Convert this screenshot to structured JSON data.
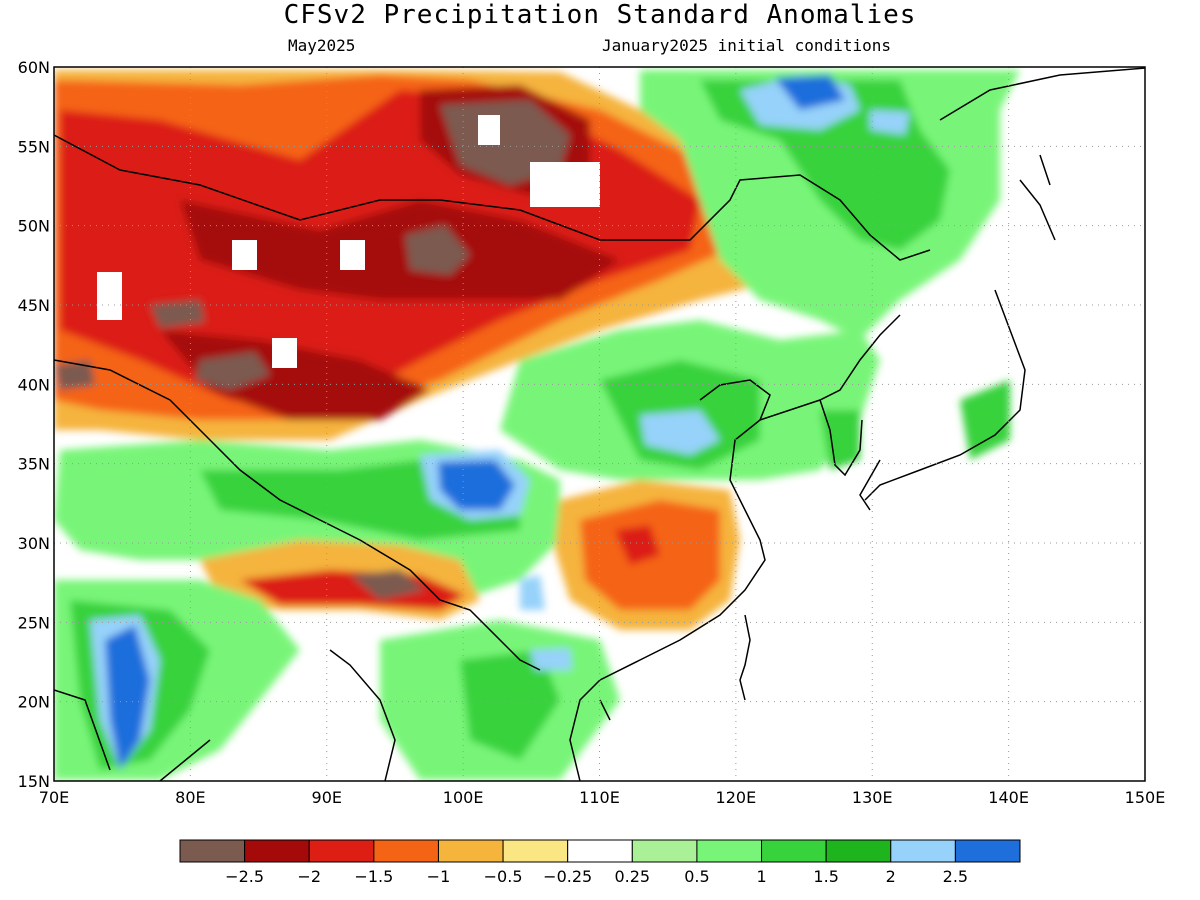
{
  "title": "CFSv2 Precipitation Standard Anomalies",
  "subtitle_left": "May2025",
  "subtitle_right": "January2025 initial conditions",
  "map": {
    "lon_range": [
      70,
      150
    ],
    "lat_range": [
      15,
      60
    ],
    "x_ticks": [
      "70E",
      "80E",
      "90E",
      "100E",
      "110E",
      "120E",
      "130E",
      "140E",
      "150E"
    ],
    "y_ticks": [
      "15N",
      "20N",
      "25N",
      "30N",
      "35N",
      "40N",
      "45N",
      "50N",
      "55N",
      "60N"
    ],
    "grid": "dotted"
  },
  "colorbar": {
    "colors": [
      "#7b5a4f",
      "#a50a0a",
      "#dc1e14",
      "#f56414",
      "#f5b43c",
      "#fae682",
      "#ffffff",
      "#aaf096",
      "#78f578",
      "#37d23c",
      "#1eb41e",
      "#96d2fa",
      "#1e6edc"
    ],
    "labels": [
      "−2.5",
      "−2",
      "−1.5",
      "−1",
      "−0.5",
      "−0.25",
      "0.25",
      "0.5",
      "1",
      "1.5",
      "2",
      "2.5"
    ]
  }
}
